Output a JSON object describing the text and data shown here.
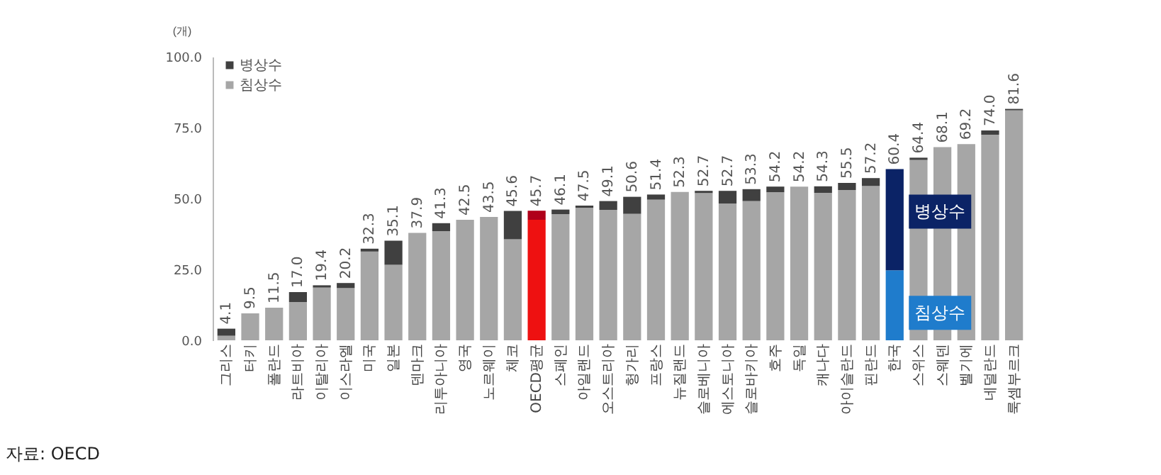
{
  "chart_data": {
    "type": "bar",
    "stacked": true,
    "ylabel": "(개)",
    "categories": [
      "그리스",
      "터키",
      "폴란드",
      "라트비아",
      "이탈리아",
      "이스라엘",
      "미국",
      "일본",
      "덴마크",
      "리투아니아",
      "영국",
      "노르웨이",
      "체코",
      "OECD평균",
      "스페인",
      "아일랜드",
      "오스트리아",
      "헝가리",
      "프랑스",
      "뉴질랜드",
      "슬로베니아",
      "에스토니아",
      "슬로바키아",
      "호주",
      "독일",
      "캐나다",
      "아이슬란드",
      "핀란드",
      "한국",
      "스위스",
      "스웨덴",
      "벨기에",
      "네덜란드",
      "룩셈부르크"
    ],
    "series": [
      {
        "name": "침상수",
        "color": "#a6a6a6",
        "values": [
          1.6,
          9.5,
          11.5,
          13.5,
          18.6,
          18.4,
          31.3,
          26.6,
          37.9,
          38.5,
          42.5,
          43.5,
          35.6,
          42.5,
          44.5,
          46.7,
          46.0,
          44.6,
          49.6,
          52.3,
          51.9,
          48.2,
          49.1,
          52.2,
          54.2,
          52.0,
          53.0,
          54.4,
          24.7,
          63.6,
          68.1,
          69.2,
          72.5,
          81.1
        ],
        "colors": [
          "#a6a6a6",
          "#a6a6a6",
          "#a6a6a6",
          "#a6a6a6",
          "#a6a6a6",
          "#a6a6a6",
          "#a6a6a6",
          "#a6a6a6",
          "#a6a6a6",
          "#a6a6a6",
          "#a6a6a6",
          "#a6a6a6",
          "#a6a6a6",
          "#ee1111",
          "#a6a6a6",
          "#a6a6a6",
          "#a6a6a6",
          "#a6a6a6",
          "#a6a6a6",
          "#a6a6a6",
          "#a6a6a6",
          "#a6a6a6",
          "#a6a6a6",
          "#a6a6a6",
          "#a6a6a6",
          "#a6a6a6",
          "#a6a6a6",
          "#a6a6a6",
          "#1f7ccc",
          "#a6a6a6",
          "#a6a6a6",
          "#a6a6a6",
          "#a6a6a6",
          "#a6a6a6"
        ]
      },
      {
        "name": "병상수",
        "color": "#404040",
        "values": [
          2.5,
          0,
          0,
          3.5,
          0.8,
          1.8,
          1.0,
          8.5,
          0,
          2.8,
          0,
          0,
          10.0,
          3.2,
          1.6,
          0.8,
          3.1,
          6.0,
          1.8,
          0,
          0.8,
          4.5,
          4.2,
          2.0,
          0,
          2.3,
          2.5,
          2.8,
          35.7,
          0.8,
          0,
          0,
          1.5,
          0.5
        ],
        "colors": [
          "#404040",
          "#404040",
          "#404040",
          "#404040",
          "#404040",
          "#404040",
          "#404040",
          "#404040",
          "#404040",
          "#404040",
          "#404040",
          "#404040",
          "#404040",
          "#b0001a",
          "#404040",
          "#404040",
          "#404040",
          "#404040",
          "#404040",
          "#404040",
          "#404040",
          "#404040",
          "#404040",
          "#404040",
          "#404040",
          "#404040",
          "#404040",
          "#404040",
          "#0b2366",
          "#404040",
          "#404040",
          "#404040",
          "#404040",
          "#404040"
        ]
      }
    ],
    "totals": [
      "4.1",
      "9.5",
      "11.5",
      "17.0",
      "19.4",
      "20.2",
      "32.3",
      "35.1",
      "37.9",
      "41.3",
      "42.5",
      "43.5",
      "45.6",
      "45.7",
      "46.1",
      "47.5",
      "49.1",
      "50.6",
      "51.4",
      "52.3",
      "52.7",
      "52.7",
      "53.3",
      "54.2",
      "54.2",
      "54.3",
      "55.5",
      "57.2",
      "60.4",
      "64.4",
      "68.1",
      "69.2",
      "74.0",
      "81.6"
    ],
    "ylim": [
      0,
      100
    ],
    "yticks": [
      {
        "value": 0,
        "label": "0.0"
      },
      {
        "value": 25,
        "label": "25.0"
      },
      {
        "value": 50,
        "label": "50.0"
      },
      {
        "value": 75,
        "label": "75.0"
      },
      {
        "value": 100,
        "label": "100.0"
      }
    ],
    "grid": false,
    "legend": "top left",
    "annotations": [
      {
        "text": "병상수",
        "x": "한국",
        "y": 60.4
      },
      {
        "text": "침상수",
        "x": "한국",
        "y": 24.7
      },
      "자료: OECD"
    ]
  }
}
